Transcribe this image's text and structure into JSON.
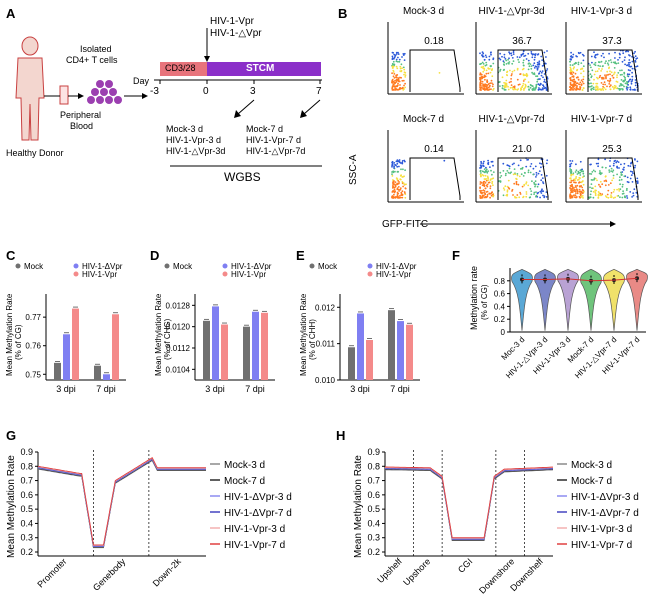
{
  "panels": {
    "A": "A",
    "B": "B",
    "C": "C",
    "D": "D",
    "E": "E",
    "F": "F",
    "G": "G",
    "H": "H"
  },
  "panel_a": {
    "isolated": "Isolated",
    "cd4": "CD4+ T cells",
    "peripheral": "Peripheral",
    "blood": "Blood",
    "donor": "Healthy Donor",
    "day": "Day",
    "treat1": "HIV-1-Vpr",
    "treat2": "HIV-1-△Vpr",
    "bar1": "CD3/28",
    "bar2": "STCM",
    "ticks": [
      "-3",
      "0",
      "3",
      "7"
    ],
    "col1": [
      "Mock-3 d",
      "HIV-1-Vpr-3 d",
      "HIV-1-△Vpr-3d"
    ],
    "col2": [
      "Mock-7 d",
      "HIV-1-Vpr-7 d",
      "HIV-1-△Vpr-7d"
    ],
    "wgbs": "WGBS",
    "colors": {
      "cd328": "#e8747c",
      "stcm": "#8b2fc9",
      "cells": "#9b3fb0"
    }
  },
  "panel_b": {
    "titles": [
      "Mock-3 d",
      "HIV-1-△Vpr-3d",
      "HIV-1-Vpr-3 d",
      "Mock-7 d",
      "HIV-1-△Vpr-7d",
      "HIV-1-Vpr-7 d"
    ],
    "values": [
      "0.18",
      "36.7",
      "37.3",
      "0.14",
      "21.0",
      "25.3"
    ],
    "fractions": [
      0.0018,
      0.367,
      0.373,
      0.0014,
      0.21,
      0.253
    ],
    "ylabel": "SSC-A",
    "xlabel": "GFP-FITC"
  },
  "legend": {
    "mock": "Mock",
    "dvpr": "HIV-1-ΔVpr",
    "vpr": "HIV-1-Vpr"
  },
  "dpi": [
    "3 dpi",
    "7 dpi"
  ],
  "ylabel_main": "Mean Methylation Rate",
  "chart_data": [
    {
      "type": "bar",
      "panel": "C",
      "categories": [
        "3 dpi",
        "7 dpi"
      ],
      "series": [
        {
          "name": "Mock",
          "values": [
            0.754,
            0.753
          ]
        },
        {
          "name": "HIV-1-ΔVpr",
          "values": [
            0.764,
            0.75
          ]
        },
        {
          "name": "HIV-1-Vpr",
          "values": [
            0.773,
            0.771
          ]
        }
      ],
      "ylabel": "(% of CG)",
      "yticks": [
        "0.77",
        "0.76",
        "0.75"
      ],
      "ylim": [
        0.748,
        0.776
      ]
    },
    {
      "type": "bar",
      "panel": "D",
      "categories": [
        "3 dpi",
        "7 dpi"
      ],
      "series": [
        {
          "name": "Mock",
          "values": [
            0.01222,
            0.012
          ]
        },
        {
          "name": "HIV-1-ΔVpr",
          "values": [
            0.01276,
            0.01256
          ]
        },
        {
          "name": "HIV-1-Vpr",
          "values": [
            0.01208,
            0.01252
          ]
        }
      ],
      "ylabel": "(% of CHG)",
      "yticks": [
        "0.0128",
        "0.0120",
        "0.0112",
        "0.0104"
      ],
      "ylim": [
        0.01,
        0.013
      ]
    },
    {
      "type": "bar",
      "panel": "E",
      "categories": [
        "3 dpi",
        "7 dpi"
      ],
      "series": [
        {
          "name": "Mock",
          "values": [
            0.0109,
            0.01192
          ]
        },
        {
          "name": "HIV-1-ΔVpr",
          "values": [
            0.01183,
            0.01162
          ]
        },
        {
          "name": "HIV-1-Vpr",
          "values": [
            0.0111,
            0.01152
          ]
        }
      ],
      "ylabel": "(% of CHH)",
      "yticks": [
        "0.012",
        "0.011",
        "0.010"
      ],
      "ylim": [
        0.01,
        0.0122
      ]
    },
    {
      "type": "violin",
      "panel": "F",
      "categories": [
        "Moc-3 d",
        "HIV-1-△Vpr-3 d",
        "HIV-1-Vpr-3 d",
        "Mock-7 d",
        "HIV-1-△Vpr-7 d",
        "HIV-1-Vpr-7 d"
      ],
      "medians": [
        0.82,
        0.82,
        0.83,
        0.8,
        0.81,
        0.84
      ],
      "colors": [
        "#5aa8d6",
        "#7b86c8",
        "#b9a2d4",
        "#6fc47c",
        "#f0e16a",
        "#e98a86"
      ],
      "ylabel": "Methylation rate",
      "ylabel2": "(% of CG)",
      "yticks": [
        "0.8",
        "0.6",
        "0.4",
        "0.2",
        "0"
      ],
      "ylim": [
        0,
        1
      ]
    },
    {
      "type": "line",
      "panel": "G",
      "ylabel": "Mean Methylation Rate",
      "yticks": [
        "0.9",
        "0.8",
        "0.7",
        "0.6",
        "0.5",
        "0.4",
        "0.3",
        "0.2"
      ],
      "ylim": [
        0.2,
        0.9
      ],
      "xticks": [
        "Promoter",
        "Genebody",
        "Down-2k"
      ],
      "series": [
        {
          "name": "Mock-3 d"
        },
        {
          "name": "Mock-7 d"
        },
        {
          "name": "HIV-1-ΔVpr-3 d"
        },
        {
          "name": "HIV-1-ΔVpr-7 d"
        },
        {
          "name": "HIV-1-Vpr-3 d"
        },
        {
          "name": "HIV-1-Vpr-7 d"
        }
      ]
    },
    {
      "type": "line",
      "panel": "H",
      "ylabel": "Mean Methylation Rate",
      "yticks": [
        "0.9",
        "0.8",
        "0.7",
        "0.6",
        "0.5",
        "0.4",
        "0.3",
        "0.2"
      ],
      "ylim": [
        0.2,
        0.9
      ],
      "xticks": [
        "Upshelf",
        "Upshore",
        "CGI",
        "Downshore",
        "Downshelf"
      ],
      "series": [
        {
          "name": "Mock-3 d"
        },
        {
          "name": "Mock-7 d"
        },
        {
          "name": "HIV-1-ΔVpr-3 d"
        },
        {
          "name": "HIV-1-ΔVpr-7 d"
        },
        {
          "name": "HIV-1-Vpr-3 d"
        },
        {
          "name": "HIV-1-Vpr-7 d"
        }
      ]
    }
  ],
  "line_colors": [
    "#8a8a8a",
    "#2a2a2a",
    "#8c8cf0",
    "#4444c0",
    "#f2b0b0",
    "#e04040"
  ],
  "bar_colors": [
    "#707070",
    "#7f7ff2",
    "#f48a8a"
  ]
}
